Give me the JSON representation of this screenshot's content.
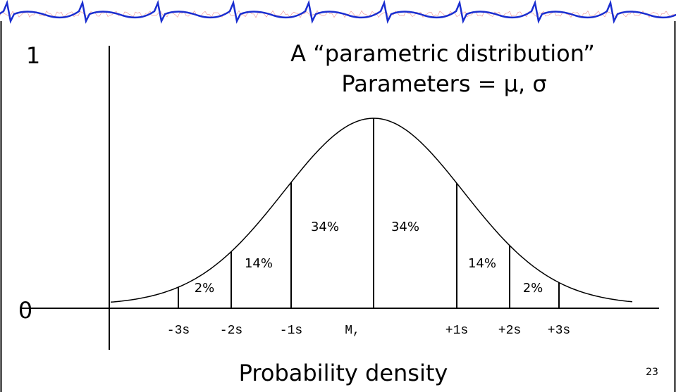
{
  "header": {
    "title_line1": "A “parametric distribution”",
    "title_line2": "Parameters = μ, σ"
  },
  "axis": {
    "y_top": "1",
    "y_bottom": "0"
  },
  "x_labels": [
    "-3s",
    "-2s",
    "-1s",
    "M,",
    "+1s",
    "+2s",
    "+3s"
  ],
  "regions": [
    "2%",
    "14%",
    "34%",
    "34%",
    "14%",
    "2%"
  ],
  "caption": "Probability density",
  "page_number": "23"
}
